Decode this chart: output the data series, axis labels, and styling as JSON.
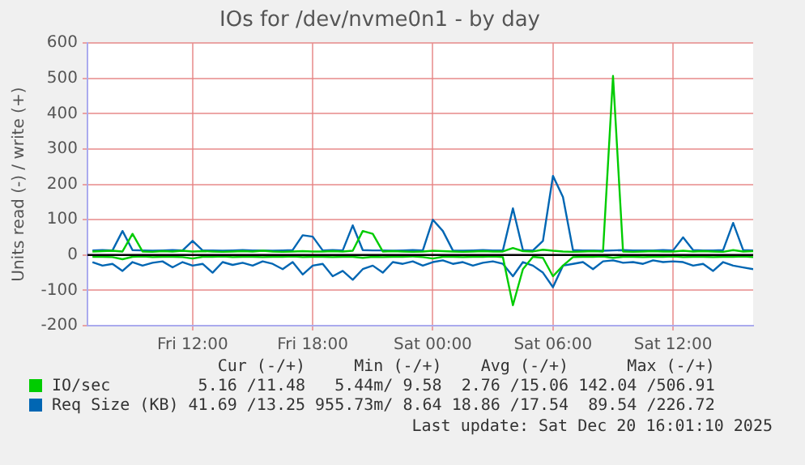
{
  "chart_data": {
    "type": "line",
    "title": "IOs for /dev/nvme0n1 - by day",
    "ylabel": "Units read (-) / write (+)",
    "x": [
      "2025-12-19T07:00",
      "2025-12-19T07:30",
      "2025-12-19T08:00",
      "2025-12-19T08:30",
      "2025-12-19T09:00",
      "2025-12-19T09:30",
      "2025-12-19T10:00",
      "2025-12-19T10:30",
      "2025-12-19T11:00",
      "2025-12-19T11:30",
      "2025-12-19T12:00",
      "2025-12-19T12:30",
      "2025-12-19T13:00",
      "2025-12-19T13:30",
      "2025-12-19T14:00",
      "2025-12-19T14:30",
      "2025-12-19T15:00",
      "2025-12-19T15:30",
      "2025-12-19T16:00",
      "2025-12-19T16:30",
      "2025-12-19T17:00",
      "2025-12-19T17:30",
      "2025-12-19T18:00",
      "2025-12-19T18:30",
      "2025-12-19T19:00",
      "2025-12-19T19:30",
      "2025-12-19T20:00",
      "2025-12-19T20:30",
      "2025-12-19T21:00",
      "2025-12-19T21:30",
      "2025-12-19T22:00",
      "2025-12-19T22:30",
      "2025-12-19T23:00",
      "2025-12-19T23:30",
      "2025-12-20T00:00",
      "2025-12-20T00:30",
      "2025-12-20T01:00",
      "2025-12-20T01:30",
      "2025-12-20T02:00",
      "2025-12-20T02:30",
      "2025-12-20T03:00",
      "2025-12-20T03:30",
      "2025-12-20T04:00",
      "2025-12-20T04:30",
      "2025-12-20T05:00",
      "2025-12-20T05:30",
      "2025-12-20T06:00",
      "2025-12-20T06:30",
      "2025-12-20T07:00",
      "2025-12-20T07:30",
      "2025-12-20T08:00",
      "2025-12-20T08:30",
      "2025-12-20T09:00",
      "2025-12-20T09:30",
      "2025-12-20T10:00",
      "2025-12-20T10:30",
      "2025-12-20T11:00",
      "2025-12-20T11:30",
      "2025-12-20T12:00",
      "2025-12-20T12:30",
      "2025-12-20T13:00",
      "2025-12-20T13:30",
      "2025-12-20T14:00",
      "2025-12-20T14:30",
      "2025-12-20T15:00",
      "2025-12-20T15:30",
      "2025-12-20T16:00"
    ],
    "xlim": [
      "2025-12-19T06:45",
      "2025-12-20T16:00"
    ],
    "xticks": [
      {
        "value": "2025-12-19T12:00",
        "label": "Fri 12:00"
      },
      {
        "value": "2025-12-19T18:00",
        "label": "Fri 18:00"
      },
      {
        "value": "2025-12-20T00:00",
        "label": "Sat 00:00"
      },
      {
        "value": "2025-12-20T06:00",
        "label": "Sat 06:00"
      },
      {
        "value": "2025-12-20T12:00",
        "label": "Sat 12:00"
      }
    ],
    "ylim": [
      -200,
      600
    ],
    "yticks": [
      -200,
      -100,
      0,
      100,
      200,
      300,
      400,
      500,
      600
    ],
    "grid": true,
    "legend": "bottom",
    "marker": "none",
    "line_style": "solid",
    "ref_lines": [
      {
        "axis": "y",
        "value": 0,
        "color": "#000000"
      }
    ],
    "series": [
      {
        "color": "#00cc00",
        "values": [
          -5,
          -5,
          -6,
          -12,
          -5,
          -4,
          -6,
          -5,
          -5,
          -6,
          -10,
          -5,
          -5,
          -4,
          -6,
          -5,
          -5,
          -6,
          -5,
          -5,
          -4,
          -6,
          -5,
          -5,
          -6,
          -5,
          -5,
          -8,
          -5,
          -6,
          -5,
          -5,
          -4,
          -6,
          -10,
          -5,
          -5,
          -6,
          -5,
          -5,
          -4,
          -6,
          -142,
          -40,
          -5,
          -8,
          -60,
          -30,
          -6,
          -5,
          -5,
          -4,
          -8,
          -5,
          -5,
          -6,
          -5,
          -5,
          -4,
          -6,
          -5,
          -5,
          -6,
          -5,
          -5,
          -4,
          -6
        ]
      },
      {
        "name": "IO/sec",
        "color": "#00cc00",
        "values": [
          10,
          11,
          12,
          10,
          60,
          10,
          9,
          11,
          10,
          12,
          10,
          11,
          10,
          9,
          10,
          11,
          10,
          12,
          10,
          9,
          10,
          11,
          10,
          10,
          11,
          10,
          12,
          68,
          60,
          10,
          11,
          10,
          9,
          10,
          12,
          11,
          10,
          9,
          10,
          11,
          10,
          10,
          20,
          11,
          10,
          15,
          12,
          10,
          9,
          10,
          11,
          10,
          507,
          10,
          9,
          10,
          11,
          10,
          10,
          12,
          10,
          11,
          10,
          9,
          14,
          10,
          11
        ]
      },
      {
        "color": "#0066b3",
        "values": [
          -20,
          -30,
          -25,
          -45,
          -20,
          -30,
          -22,
          -18,
          -35,
          -20,
          -30,
          -25,
          -50,
          -20,
          -28,
          -22,
          -30,
          -18,
          -25,
          -40,
          -20,
          -55,
          -30,
          -25,
          -60,
          -45,
          -70,
          -40,
          -30,
          -50,
          -20,
          -25,
          -18,
          -30,
          -20,
          -15,
          -25,
          -20,
          -30,
          -22,
          -18,
          -25,
          -60,
          -20,
          -30,
          -50,
          -91,
          -30,
          -25,
          -20,
          -40,
          -18,
          -15,
          -22,
          -20,
          -25,
          -15,
          -20,
          -18,
          -20,
          -30,
          -25,
          -45,
          -20,
          -30,
          -35,
          -40
        ]
      },
      {
        "name": "Req Size (KB)",
        "color": "#0066b3",
        "values": [
          13,
          14,
          13,
          68,
          14,
          13,
          12,
          13,
          14,
          13,
          40,
          13,
          13,
          12,
          13,
          14,
          13,
          13,
          12,
          13,
          14,
          56,
          52,
          13,
          14,
          13,
          84,
          14,
          13,
          13,
          12,
          13,
          14,
          13,
          100,
          68,
          13,
          12,
          13,
          14,
          13,
          13,
          132,
          14,
          13,
          40,
          224,
          164,
          14,
          13,
          13,
          12,
          13,
          14,
          13,
          13,
          13,
          14,
          13,
          50,
          14,
          13,
          13,
          14,
          91,
          14,
          13
        ]
      }
    ],
    "annotations": [
      "Cur (-/+)",
      "Min (-/+)",
      "Avg (-/+)",
      "Max (-/+)",
      "5.16 /11.48",
      "5.44m/ 9.58",
      "2.76 /15.06",
      "142.04 /506.91",
      "41.69 /13.25",
      "955.73m/ 8.64",
      "18.86 /17.54",
      "89.54 /226.72",
      "Last update: Sat Dec 20 16:01:10 2025"
    ]
  }
}
